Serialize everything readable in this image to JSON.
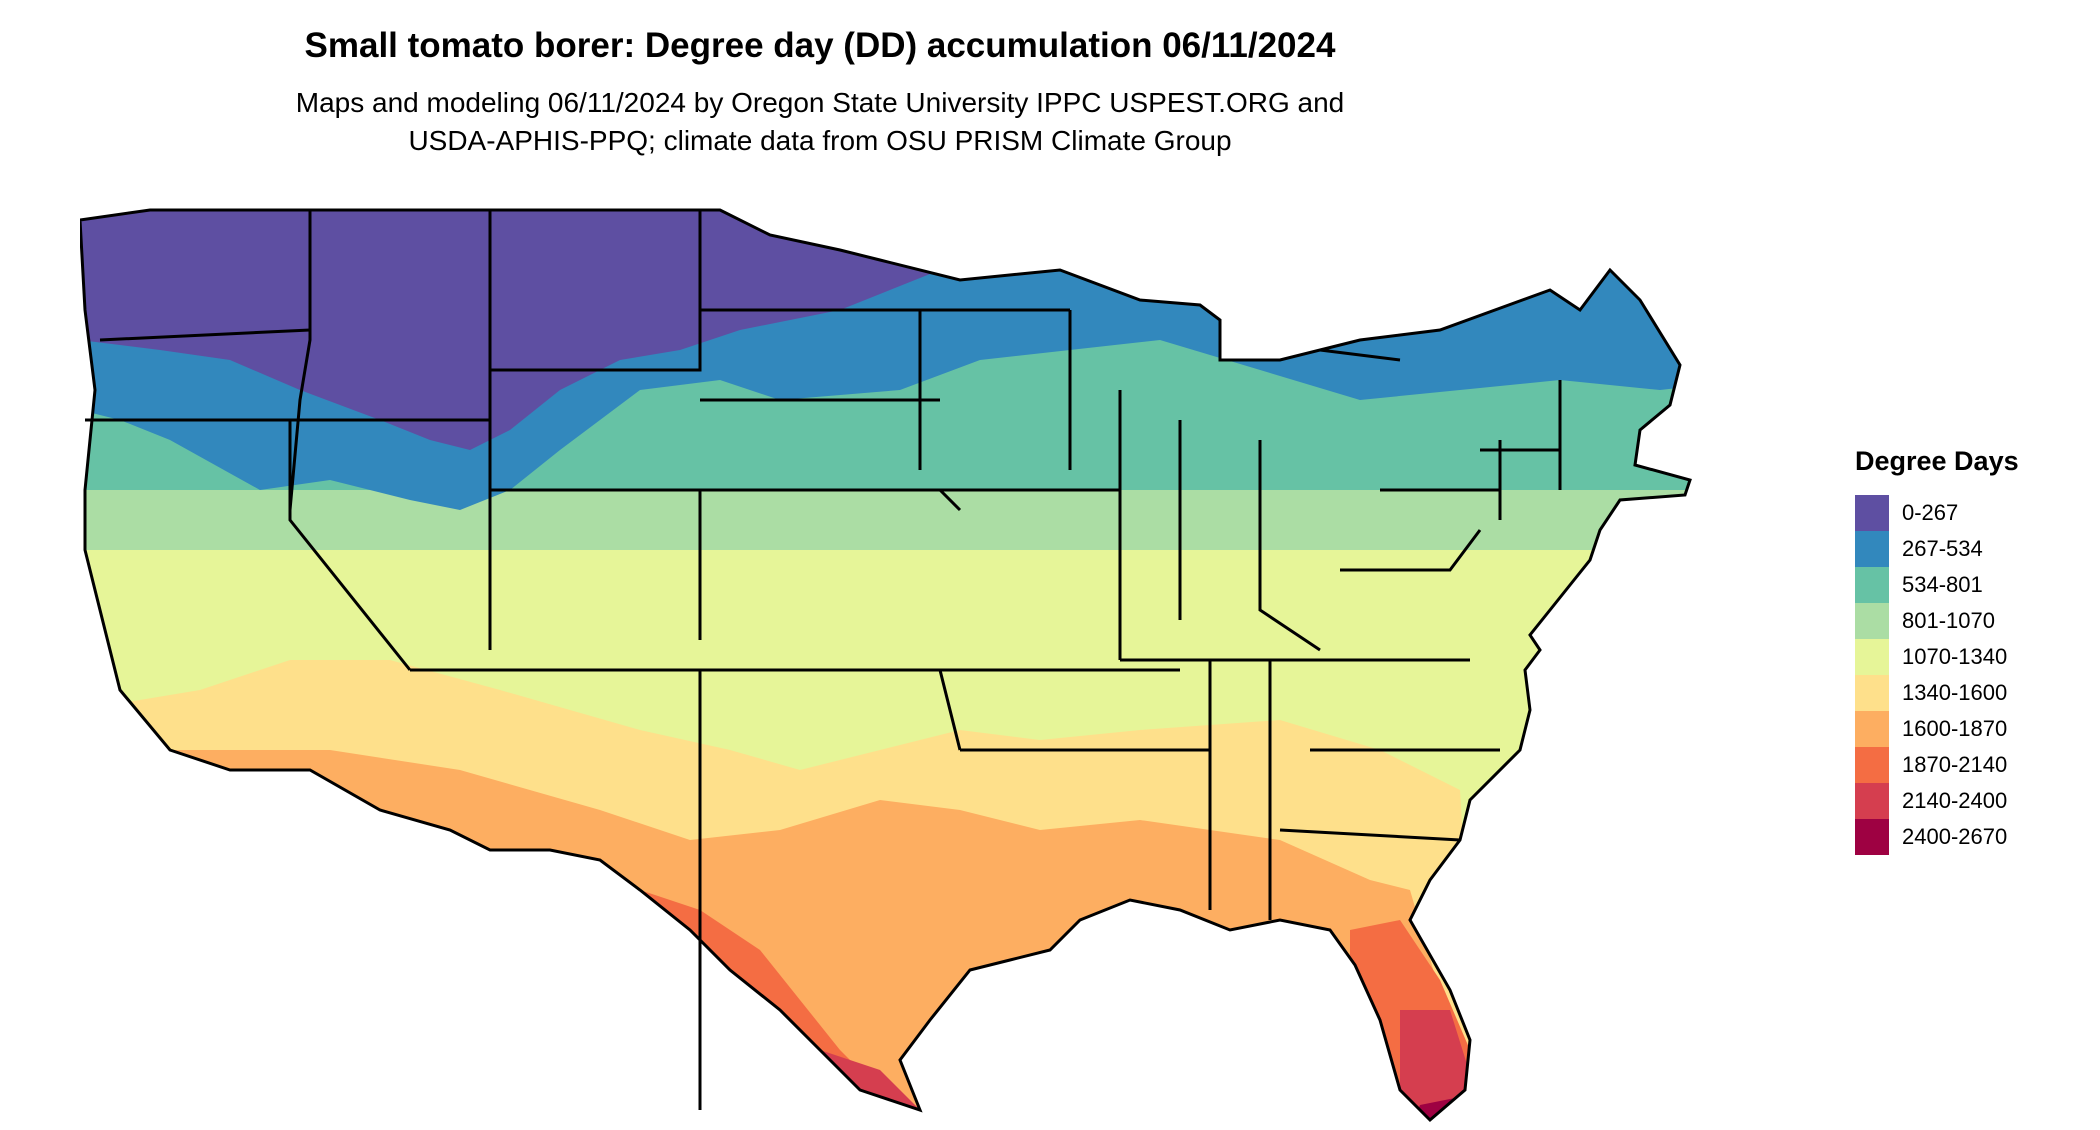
{
  "title": "Small tomato borer: Degree day (DD) accumulation 06/11/2024",
  "subtitle_line1": "Maps and modeling 06/11/2024 by Oregon State University IPPC USPEST.ORG and",
  "subtitle_line2": "USDA-APHIS-PPQ; climate data from OSU PRISM Climate Group",
  "legend": {
    "title": "Degree Days",
    "items": [
      {
        "label": "0-267",
        "color": "#5e4fa2"
      },
      {
        "label": "267-534",
        "color": "#3288bd"
      },
      {
        "label": "534-801",
        "color": "#66c2a5"
      },
      {
        "label": "801-1070",
        "color": "#abdda4"
      },
      {
        "label": "1070-1340",
        "color": "#e6f598"
      },
      {
        "label": "1340-1600",
        "color": "#fee08b"
      },
      {
        "label": "1600-1870",
        "color": "#fdae61"
      },
      {
        "label": "1870-2140",
        "color": "#f46d43"
      },
      {
        "label": "2140-2400",
        "color": "#d53e4f"
      },
      {
        "label": "2400-2670",
        "color": "#9e0142"
      }
    ]
  }
}
